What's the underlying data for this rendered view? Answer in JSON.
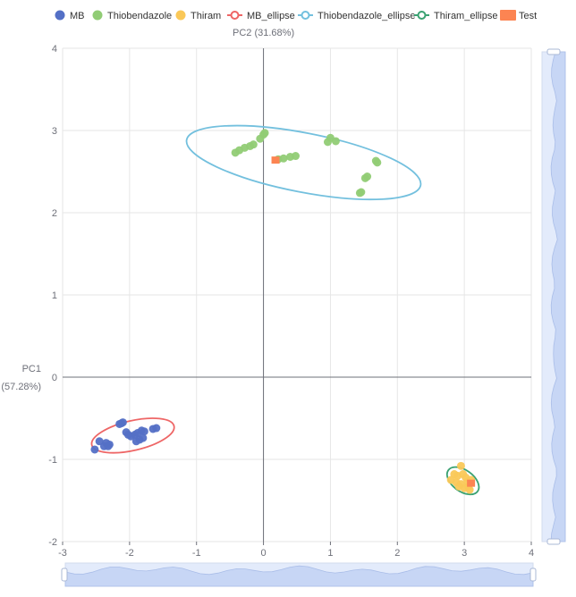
{
  "chart_data": {
    "type": "scatter",
    "x_axis_label": "PC1",
    "x_axis_label_pct": "(57.28%)",
    "y_axis_label": "PC2 (31.68%)",
    "xlim": [
      -3,
      4
    ],
    "ylim": [
      -2,
      4
    ],
    "x_ticks": [
      "-3",
      "-2",
      "-1",
      "0",
      "1",
      "2",
      "3",
      "4"
    ],
    "y_ticks": [
      "-2",
      "-1",
      "0",
      "1",
      "2",
      "3",
      "4"
    ],
    "grid": true,
    "legend": [
      {
        "name": "MB",
        "color": "#5470c6",
        "marker": "circle"
      },
      {
        "name": "Thiobendazole",
        "color": "#91cc75",
        "marker": "circle"
      },
      {
        "name": "Thiram",
        "color": "#fac858",
        "marker": "circle"
      },
      {
        "name": "MB_ellipse",
        "color": "#ee6666",
        "marker": "line"
      },
      {
        "name": "Thiobendazole_ellipse",
        "color": "#73c0de",
        "marker": "line"
      },
      {
        "name": "Thiram_ellipse",
        "color": "#3ba272",
        "marker": "line"
      },
      {
        "name": "Test",
        "color": "#fc8452",
        "marker": "rect"
      }
    ],
    "series": [
      {
        "name": "MB",
        "color": "#5470c6",
        "points": [
          [
            -2.1,
            -0.55
          ],
          [
            -2.12,
            -0.56
          ],
          [
            -2.15,
            -0.57
          ],
          [
            -2.45,
            -0.78
          ],
          [
            -2.35,
            -0.8
          ],
          [
            -2.3,
            -0.82
          ],
          [
            -2.38,
            -0.84
          ],
          [
            -2.32,
            -0.84
          ],
          [
            -2.52,
            -0.88
          ],
          [
            -2.05,
            -0.67
          ],
          [
            -2.02,
            -0.7
          ],
          [
            -1.98,
            -0.72
          ],
          [
            -1.92,
            -0.7
          ],
          [
            -1.88,
            -0.68
          ],
          [
            -1.82,
            -0.65
          ],
          [
            -1.78,
            -0.66
          ],
          [
            -1.65,
            -0.63
          ],
          [
            -1.6,
            -0.62
          ],
          [
            -1.9,
            -0.78
          ],
          [
            -1.85,
            -0.76
          ],
          [
            -1.8,
            -0.74
          ]
        ]
      },
      {
        "name": "Thiobendazole",
        "color": "#91cc75",
        "points": [
          [
            -0.42,
            2.73
          ],
          [
            -0.36,
            2.76
          ],
          [
            -0.28,
            2.79
          ],
          [
            -0.2,
            2.81
          ],
          [
            -0.15,
            2.83
          ],
          [
            -0.05,
            2.9
          ],
          [
            0.0,
            2.95
          ],
          [
            0.02,
            2.97
          ],
          [
            0.22,
            2.65
          ],
          [
            0.3,
            2.66
          ],
          [
            0.4,
            2.68
          ],
          [
            0.48,
            2.69
          ],
          [
            0.96,
            2.86
          ],
          [
            1.0,
            2.91
          ],
          [
            1.08,
            2.87
          ],
          [
            1.52,
            2.42
          ],
          [
            1.55,
            2.44
          ],
          [
            1.68,
            2.63
          ],
          [
            1.7,
            2.61
          ],
          [
            1.44,
            2.24
          ],
          [
            1.46,
            2.25
          ]
        ]
      },
      {
        "name": "Thiram",
        "color": "#fac858",
        "points": [
          [
            2.95,
            -1.08
          ],
          [
            2.85,
            -1.18
          ],
          [
            2.9,
            -1.2
          ],
          [
            2.98,
            -1.18
          ],
          [
            3.02,
            -1.22
          ],
          [
            2.8,
            -1.25
          ],
          [
            2.88,
            -1.28
          ],
          [
            2.95,
            -1.3
          ],
          [
            3.05,
            -1.27
          ],
          [
            3.1,
            -1.25
          ],
          [
            2.92,
            -1.33
          ],
          [
            3.0,
            -1.35
          ],
          [
            3.06,
            -1.33
          ],
          [
            3.08,
            -1.37
          ]
        ]
      },
      {
        "name": "Test",
        "color": "#fc8452",
        "marker": "rect",
        "points": [
          [
            0.18,
            2.64
          ],
          [
            3.1,
            -1.29
          ]
        ]
      }
    ],
    "ellipses": [
      {
        "name": "MB_ellipse",
        "color": "#ee6666",
        "center": [
          -1.95,
          -0.71
        ],
        "rx": 0.63,
        "ry": 0.18,
        "angle_deg": 13
      },
      {
        "name": "Thiobendazole_ellipse",
        "color": "#73c0de",
        "center": [
          0.6,
          2.61
        ],
        "rx": 1.78,
        "ry": 0.36,
        "angle_deg": -11
      },
      {
        "name": "Thiram_ellipse",
        "color": "#3ba272",
        "center": [
          2.98,
          -1.26
        ],
        "rx": 0.27,
        "ry": 0.13,
        "angle_deg": -36
      }
    ]
  }
}
